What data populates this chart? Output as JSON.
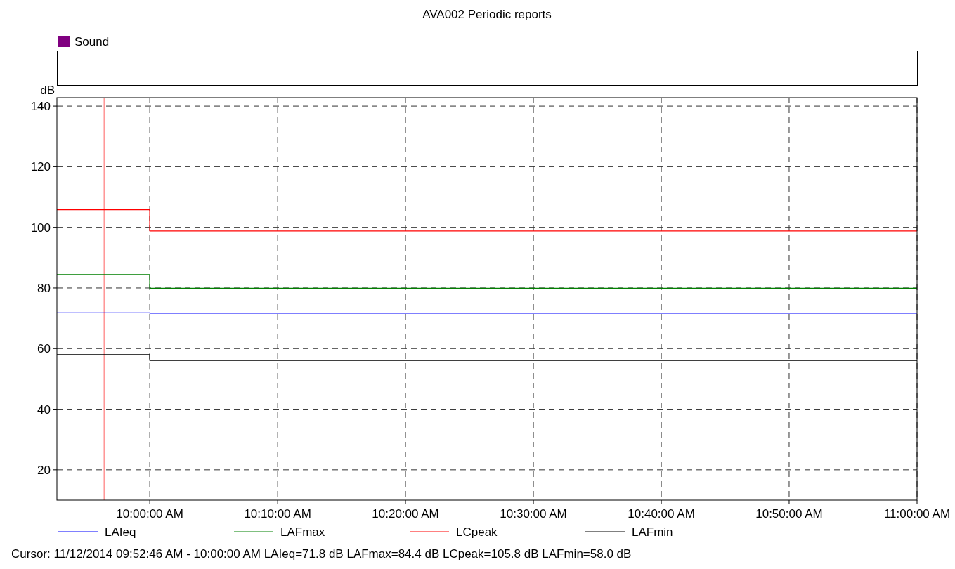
{
  "chart_data": {
    "type": "step",
    "title": "AVA002 Periodic reports",
    "ylabel": "dB",
    "x": [
      9.879,
      10,
      11
    ],
    "series": [
      {
        "name": "LAIeq",
        "color": "#0000ff",
        "values": [
          71.8,
          71.7,
          71.7
        ]
      },
      {
        "name": "LAFmax",
        "color": "#008000",
        "values": [
          84.4,
          79.9,
          79.9
        ]
      },
      {
        "name": "LCpeak",
        "color": "#ff0000",
        "values": [
          105.8,
          98.8,
          98.8
        ]
      },
      {
        "name": "LAFmin",
        "color": "#000000",
        "values": [
          58.0,
          56.1,
          56.1
        ]
      }
    ],
    "xlim": [
      9.879,
      11
    ],
    "xticks": [
      {
        "value": 10,
        "label": "10:00:00 AM"
      },
      {
        "value": 10.1667,
        "label": "10:10:00 AM"
      },
      {
        "value": 10.3333,
        "label": "10:20:00 AM"
      },
      {
        "value": 10.5,
        "label": "10:30:00 AM"
      },
      {
        "value": 10.6667,
        "label": "10:40:00 AM"
      },
      {
        "value": 10.8333,
        "label": "10:50:00 AM"
      },
      {
        "value": 11,
        "label": "11:00:00 AM"
      }
    ],
    "ylim": [
      10,
      142.8
    ],
    "yticks": [
      20,
      40,
      60,
      80,
      100,
      120,
      140
    ],
    "grid": true,
    "legend": "bottom",
    "line_style": "solid",
    "ref_lines": [
      {
        "axis": "x",
        "value": 9.9405,
        "color": "#ff6060"
      }
    ],
    "annotations": [
      "Sound",
      "Cursor: 11/12/2014 09:52:46 AM - 10:00:00 AM  LAIeq=71.8 dB  LAFmax=84.4 dB  LCpeak=105.8 dB  LAFmin=58.0 dB"
    ]
  }
}
